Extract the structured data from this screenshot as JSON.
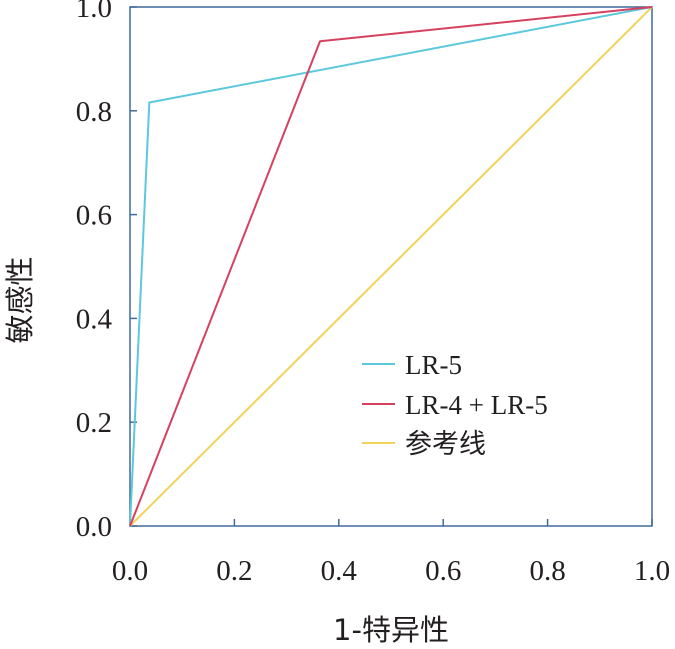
{
  "chart_data": {
    "type": "line",
    "xlabel": "1-特异性",
    "ylabel": "敏感性",
    "xlim": [
      0,
      1
    ],
    "ylim": [
      0,
      1
    ],
    "x_ticks": [
      "0.0",
      "0.2",
      "0.4",
      "0.6",
      "0.8",
      "1.0"
    ],
    "y_ticks": [
      "0.0",
      "0.2",
      "0.4",
      "0.6",
      "0.8",
      "1.0"
    ],
    "grid": false,
    "legend_position": "lower-right",
    "series": [
      {
        "name": "LR-5",
        "color": "#5bc8dc",
        "x": [
          0,
          0.037,
          1
        ],
        "y": [
          0,
          0.816,
          1
        ]
      },
      {
        "name": "LR-4 + LR-5",
        "color": "#d6415f",
        "x": [
          0,
          0.364,
          1
        ],
        "y": [
          0,
          0.934,
          1
        ]
      },
      {
        "name": "参考线",
        "color": "#f2d35a",
        "x": [
          0,
          1
        ],
        "y": [
          0,
          1
        ]
      }
    ]
  }
}
